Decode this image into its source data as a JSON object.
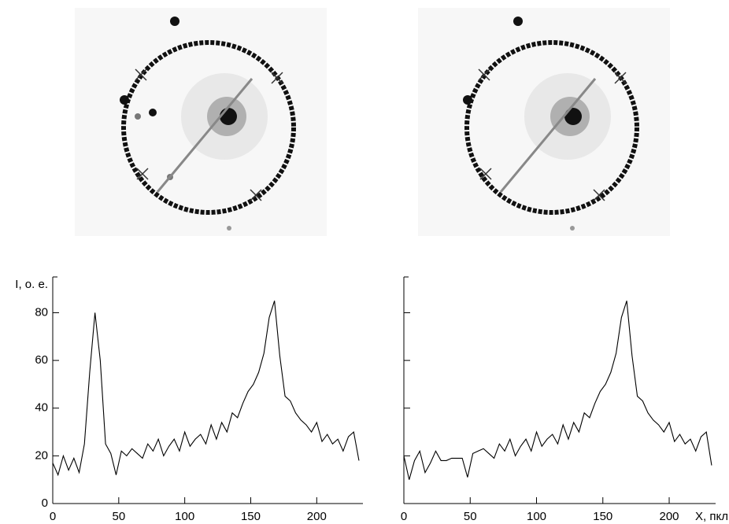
{
  "chart_data": [
    {
      "type": "line",
      "ylabel": "I, о. е.",
      "x": [
        0,
        4,
        8,
        12,
        16,
        20,
        24,
        28,
        32,
        36,
        40,
        44,
        48,
        52,
        56,
        60,
        64,
        68,
        72,
        76,
        80,
        84,
        88,
        92,
        96,
        100,
        104,
        108,
        112,
        116,
        120,
        124,
        128,
        132,
        136,
        140,
        144,
        148,
        152,
        156,
        160,
        164,
        168,
        172,
        176,
        180,
        184,
        188,
        192,
        196,
        200,
        204,
        208,
        212,
        216,
        220,
        224,
        228,
        232
      ],
      "values": [
        17,
        12,
        20,
        14,
        19,
        13,
        25,
        55,
        80,
        60,
        25,
        21,
        12,
        22,
        20,
        23,
        21,
        19,
        25,
        22,
        27,
        20,
        24,
        27,
        22,
        30,
        24,
        27,
        29,
        25,
        33,
        27,
        34,
        30,
        38,
        36,
        42,
        47,
        50,
        55,
        63,
        78,
        85,
        62,
        45,
        43,
        38,
        35,
        33,
        30,
        34,
        26,
        29,
        25,
        27,
        22,
        28,
        30,
        18
      ],
      "color": "#000000",
      "xlim": [
        0,
        235
      ],
      "ylim": [
        0,
        95
      ],
      "xticks": [
        0,
        50,
        100,
        150,
        200
      ],
      "yticks": [
        0,
        20,
        40,
        60,
        80
      ]
    },
    {
      "type": "line",
      "xlabel": "X, пкл",
      "x": [
        0,
        4,
        8,
        12,
        16,
        20,
        24,
        28,
        32,
        36,
        40,
        44,
        48,
        52,
        56,
        60,
        64,
        68,
        72,
        76,
        80,
        84,
        88,
        92,
        96,
        100,
        104,
        108,
        112,
        116,
        120,
        124,
        128,
        132,
        136,
        140,
        144,
        148,
        152,
        156,
        160,
        164,
        168,
        172,
        176,
        180,
        184,
        188,
        192,
        196,
        200,
        204,
        208,
        212,
        216,
        220,
        224,
        228,
        232
      ],
      "values": [
        20,
        10,
        18,
        22,
        13,
        17,
        22,
        18,
        18,
        19,
        19,
        19,
        11,
        21,
        22,
        23,
        21,
        19,
        25,
        22,
        27,
        20,
        24,
        27,
        22,
        30,
        24,
        27,
        29,
        25,
        33,
        27,
        34,
        30,
        38,
        36,
        42,
        47,
        50,
        55,
        63,
        78,
        85,
        62,
        45,
        43,
        38,
        35,
        33,
        30,
        34,
        26,
        29,
        25,
        27,
        22,
        28,
        30,
        16
      ],
      "color": "#000000",
      "xlim": [
        0,
        235
      ],
      "ylim": [
        0,
        95
      ],
      "xticks": [
        0,
        50,
        100,
        150,
        200
      ],
      "yticks": [
        0,
        20,
        40,
        60,
        80
      ]
    }
  ]
}
